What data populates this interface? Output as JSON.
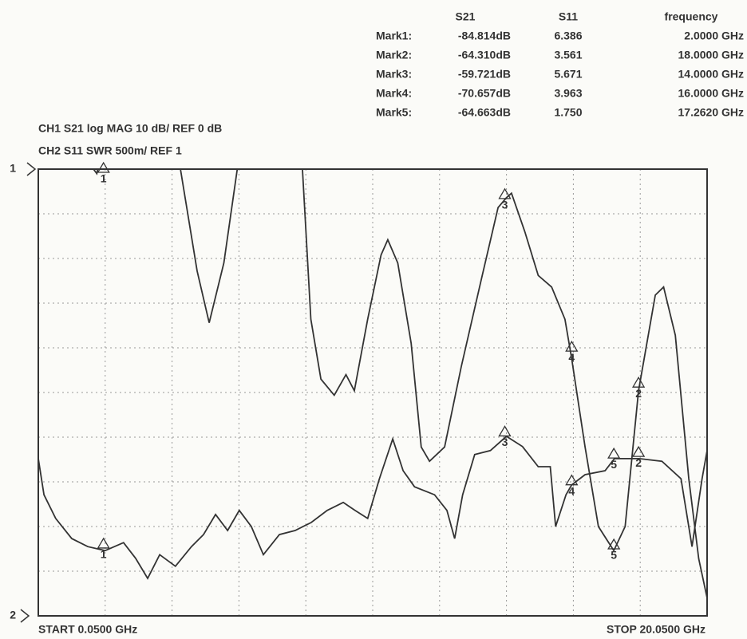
{
  "chart_data": {
    "type": "line",
    "channel_lines": [
      "CH1  S21  log  MAG  10  dB/  REF   0 dB",
      "CH2  S11  SWR  500m/  REF   1"
    ],
    "ref_labels": [
      "1",
      "2"
    ],
    "start_label": "START  0.0500  GHz",
    "stop_label": "STOP  20.0500  GHz",
    "xlim": [
      0.05,
      20.05
    ],
    "xticks": [
      0.05,
      2.05,
      4.05,
      6.05,
      8.05,
      10.05,
      12.05,
      14.05,
      16.05,
      18.05,
      20.05
    ],
    "ylim": [
      -100,
      0
    ],
    "yticks": [
      -100,
      -90,
      -80,
      -70,
      -60,
      -50,
      -40,
      -30,
      -20,
      -10,
      0
    ],
    "y2lim": [
      1,
      6
    ],
    "grid": true,
    "series": [
      {
        "name": "S21",
        "color": "#333333",
        "x": [
          0.05,
          0.22,
          0.57,
          1.05,
          1.53,
          2.05,
          2.6,
          2.96,
          3.32,
          3.68,
          4.15,
          4.63,
          4.99,
          5.35,
          5.71,
          6.06,
          6.42,
          6.78,
          7.26,
          7.73,
          8.21,
          8.69,
          9.17,
          9.52,
          9.9,
          10.25,
          10.65,
          10.96,
          11.3,
          11.9,
          12.27,
          12.5,
          12.74,
          13.1,
          13.57,
          14.05,
          14.53,
          15.0,
          15.36,
          15.52,
          15.83,
          16.0,
          16.4,
          17.0,
          17.28,
          18.02,
          18.7,
          19.27,
          19.6,
          19.9,
          20.05
        ],
        "values": [
          -64.8,
          -72.9,
          -78.2,
          -82.7,
          -84.5,
          -85.4,
          -83.6,
          -87.1,
          -91.6,
          -86.3,
          -88.9,
          -84.5,
          -81.8,
          -77.3,
          -80.9,
          -76.4,
          -80.0,
          -86.3,
          -81.8,
          -80.9,
          -79.1,
          -76.4,
          -74.6,
          -76.4,
          -78.2,
          -69.3,
          -60.4,
          -67.5,
          -71.1,
          -72.9,
          -76.4,
          -82.7,
          -72.9,
          -63.9,
          -63.0,
          -59.8,
          -62.1,
          -66.6,
          -66.6,
          -80.0,
          -72.9,
          -70.7,
          -68.4,
          -67.5,
          -64.8,
          -64.8,
          -65.4,
          -69.3,
          -84.5,
          -69.3,
          -63.0
        ]
      },
      {
        "name": "S11",
        "color": "#333333",
        "axis": "y2",
        "x": [
          0.05,
          1.5,
          1.8,
          2.05,
          3.5,
          4.3,
          4.8,
          5.16,
          5.6,
          6.0,
          6.5,
          7.8,
          8.2,
          8.5,
          8.9,
          9.25,
          9.5,
          9.9,
          10.3,
          10.5,
          10.8,
          11.2,
          11.5,
          11.75,
          12.2,
          12.7,
          13.3,
          13.8,
          14.05,
          14.2,
          14.6,
          15.0,
          15.4,
          15.8,
          16.0,
          16.4,
          16.8,
          17.26,
          17.6,
          18.0,
          18.5,
          18.75,
          19.1,
          19.5,
          19.8,
          20.05
        ],
        "values": [
          7.0,
          6.1,
          5.95,
          6.39,
          7.5,
          6.0,
          4.86,
          4.28,
          4.95,
          6.0,
          7.5,
          7.0,
          4.32,
          3.65,
          3.47,
          3.7,
          3.52,
          4.32,
          5.04,
          5.21,
          4.95,
          4.05,
          2.89,
          2.73,
          2.89,
          3.79,
          4.77,
          5.57,
          5.68,
          5.73,
          5.3,
          4.81,
          4.68,
          4.32,
          3.88,
          2.89,
          2.0,
          1.73,
          2.0,
          3.52,
          4.59,
          4.68,
          4.14,
          2.54,
          1.64,
          1.2
        ]
      }
    ],
    "marker_headers": [
      "S21",
      "S11",
      "frequency"
    ],
    "markers": [
      {
        "label": "Mark1:",
        "tag": "1",
        "s21": -84.814,
        "s21_label": "-84.814dB",
        "s11": 6.386,
        "frequency": 2.0,
        "frequency_label": "2.0000  GHz"
      },
      {
        "label": "Mark2:",
        "tag": "2",
        "s21": -64.31,
        "s21_label": "-64.310dB",
        "s11": 3.561,
        "frequency": 18.0,
        "frequency_label": "18.0000 GHz"
      },
      {
        "label": "Mark3:",
        "tag": "3",
        "s21": -59.721,
        "s21_label": "-59.721dB",
        "s11": 5.671,
        "frequency": 14.0,
        "frequency_label": "14.0000 GHz"
      },
      {
        "label": "Mark4:",
        "tag": "4",
        "s21": -70.657,
        "s21_label": "-70.657dB",
        "s11": 3.963,
        "frequency": 16.0,
        "frequency_label": "16.0000 GHz"
      },
      {
        "label": "Mark5:",
        "tag": "5",
        "s21": -64.663,
        "s21_label": "-64.663dB",
        "s11": 1.75,
        "s11_label": "1.750",
        "frequency": 17.262,
        "frequency_label": "17.2620 GHz"
      }
    ]
  }
}
